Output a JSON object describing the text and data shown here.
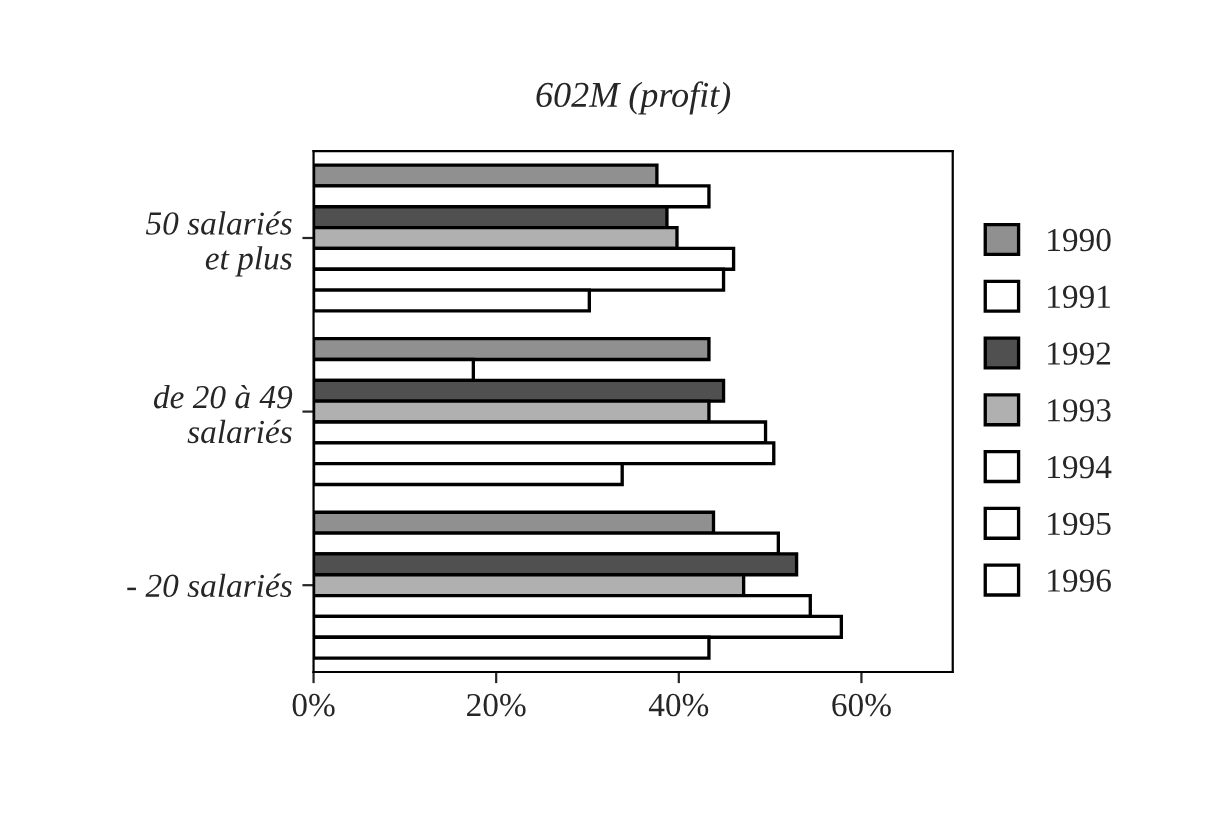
{
  "chart_data": {
    "type": "bar",
    "orientation": "horizontal",
    "title": "602M (profit)",
    "categories": [
      "50 salariés\net plus",
      "de 20 à 49\nsalariés",
      "- 20 salariés"
    ],
    "series": [
      {
        "name": "1990",
        "color": "#909090",
        "values": [
          37.6,
          43.3,
          43.8
        ]
      },
      {
        "name": "1991",
        "color": "#ffffff",
        "values": [
          43.3,
          17.5,
          50.9
        ]
      },
      {
        "name": "1992",
        "color": "#505050",
        "values": [
          38.7,
          44.9,
          52.9
        ]
      },
      {
        "name": "1993",
        "color": "#b0b0b0",
        "values": [
          39.8,
          43.3,
          47.1
        ]
      },
      {
        "name": "1994",
        "color": "#ffffff",
        "values": [
          46,
          49.5,
          54.4
        ]
      },
      {
        "name": "1995",
        "color": "#ffffff",
        "values": [
          44.9,
          50.4,
          57.8
        ]
      },
      {
        "name": "1996",
        "color": "#ffffff",
        "values": [
          30.2,
          33.8,
          43.3
        ]
      }
    ],
    "xlim": [
      0,
      70
    ],
    "xticks": [
      {
        "value": 0,
        "label": "0%"
      },
      {
        "value": 20,
        "label": "20%"
      },
      {
        "value": 40,
        "label": "40%"
      },
      {
        "value": 60,
        "label": "60%"
      }
    ],
    "grid": false,
    "legend": "right"
  }
}
